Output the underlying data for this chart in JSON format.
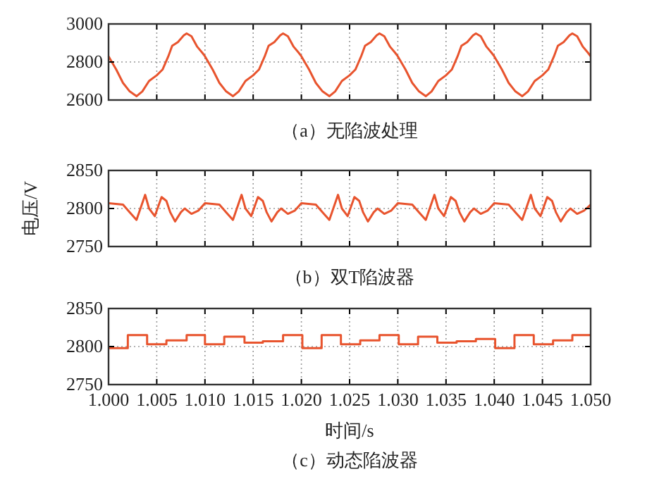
{
  "chart_data": [
    {
      "type": "line",
      "title": "（a）无陷波处理",
      "xlim": [
        1.0,
        1.05
      ],
      "ylim": [
        2600,
        3000
      ],
      "yticks": [
        2600,
        2800,
        3000
      ],
      "xticks": [
        {
          "value": 1.0,
          "label": null
        },
        {
          "value": 1.005,
          "label": null
        },
        {
          "value": 1.01,
          "label": null
        },
        {
          "value": 1.015,
          "label": null
        },
        {
          "value": 1.02,
          "label": null
        },
        {
          "value": 1.025,
          "label": null
        },
        {
          "value": 1.03,
          "label": null
        },
        {
          "value": 1.035,
          "label": null
        },
        {
          "value": 1.04,
          "label": null
        },
        {
          "value": 1.045,
          "label": null
        },
        {
          "value": 1.05,
          "label": null
        }
      ],
      "tick_labels": "y",
      "grid": true,
      "series": [
        {
          "color": "#e8542e",
          "x": [
            1.0,
            1.0008,
            1.0015,
            1.0022,
            1.0029,
            1.0035,
            1.0042,
            1.005,
            1.0056,
            1.0062,
            1.0066,
            1.0072,
            1.0078,
            1.0081,
            1.0086,
            1.0092,
            1.0097,
            1.01,
            1.0108,
            1.0115,
            1.0122,
            1.0129,
            1.0135,
            1.0142,
            1.015,
            1.0156,
            1.0162,
            1.0166,
            1.0172,
            1.0178,
            1.0181,
            1.0186,
            1.0192,
            1.0197,
            1.02,
            1.0208,
            1.0215,
            1.0222,
            1.0229,
            1.0235,
            1.0242,
            1.025,
            1.0256,
            1.0262,
            1.0266,
            1.0272,
            1.0278,
            1.0281,
            1.0286,
            1.0292,
            1.0297,
            1.03,
            1.0308,
            1.0315,
            1.0322,
            1.0329,
            1.0335,
            1.0342,
            1.035,
            1.0356,
            1.0362,
            1.0366,
            1.0372,
            1.0378,
            1.0381,
            1.0386,
            1.0392,
            1.0397,
            1.04,
            1.0408,
            1.0415,
            1.0422,
            1.0429,
            1.0435,
            1.0442,
            1.045,
            1.0456,
            1.0462,
            1.0466,
            1.0472,
            1.0478,
            1.0481,
            1.0486,
            1.0492,
            1.0497,
            1.05
          ],
          "values": [
            2830,
            2760,
            2690,
            2645,
            2620,
            2645,
            2700,
            2730,
            2760,
            2830,
            2885,
            2905,
            2940,
            2950,
            2935,
            2880,
            2850,
            2830,
            2760,
            2690,
            2645,
            2620,
            2645,
            2700,
            2730,
            2760,
            2830,
            2885,
            2905,
            2940,
            2950,
            2935,
            2880,
            2850,
            2830,
            2760,
            2690,
            2645,
            2620,
            2645,
            2700,
            2730,
            2760,
            2830,
            2885,
            2905,
            2940,
            2950,
            2935,
            2880,
            2850,
            2830,
            2760,
            2690,
            2645,
            2620,
            2645,
            2700,
            2730,
            2760,
            2830,
            2885,
            2905,
            2940,
            2950,
            2935,
            2880,
            2850,
            2830,
            2760,
            2690,
            2645,
            2620,
            2645,
            2700,
            2730,
            2760,
            2830,
            2885,
            2905,
            2940,
            2950,
            2935,
            2880,
            2850,
            2830
          ]
        }
      ]
    },
    {
      "type": "line",
      "title": "（b）双T陷波器",
      "ylabel": "电压/V",
      "xlim": [
        1.0,
        1.05
      ],
      "ylim": [
        2750,
        2850
      ],
      "yticks": [
        2750,
        2800,
        2850
      ],
      "xticks": [
        {
          "value": 1.0,
          "label": null
        },
        {
          "value": 1.005,
          "label": null
        },
        {
          "value": 1.01,
          "label": null
        },
        {
          "value": 1.015,
          "label": null
        },
        {
          "value": 1.02,
          "label": null
        },
        {
          "value": 1.025,
          "label": null
        },
        {
          "value": 1.03,
          "label": null
        },
        {
          "value": 1.035,
          "label": null
        },
        {
          "value": 1.04,
          "label": null
        },
        {
          "value": 1.045,
          "label": null
        },
        {
          "value": 1.05,
          "label": null
        }
      ],
      "tick_labels": "y",
      "grid": true,
      "series": [
        {
          "color": "#e8542e",
          "x": [
            1.0,
            1.0015,
            1.0022,
            1.0029,
            1.0038,
            1.0042,
            1.0048,
            1.0055,
            1.006,
            1.0064,
            1.0069,
            1.0075,
            1.0079,
            1.0086,
            1.0093,
            1.01,
            1.0115,
            1.0122,
            1.0129,
            1.0138,
            1.0142,
            1.0148,
            1.0155,
            1.016,
            1.0164,
            1.0169,
            1.0175,
            1.0179,
            1.0186,
            1.0193,
            1.02,
            1.0215,
            1.0222,
            1.0229,
            1.0238,
            1.0242,
            1.0248,
            1.0255,
            1.026,
            1.0264,
            1.0269,
            1.0275,
            1.0279,
            1.0286,
            1.0293,
            1.03,
            1.0315,
            1.0322,
            1.0329,
            1.0338,
            1.0342,
            1.0348,
            1.0355,
            1.036,
            1.0364,
            1.0369,
            1.0375,
            1.0379,
            1.0386,
            1.0393,
            1.04,
            1.0415,
            1.0422,
            1.0429,
            1.0438,
            1.0442,
            1.0448,
            1.0455,
            1.046,
            1.0464,
            1.0469,
            1.0475,
            1.0479,
            1.0486,
            1.0493,
            1.05
          ],
          "values": [
            2807,
            2805,
            2795,
            2785,
            2818,
            2800,
            2790,
            2815,
            2810,
            2795,
            2783,
            2795,
            2800,
            2793,
            2797,
            2807,
            2805,
            2795,
            2785,
            2818,
            2800,
            2790,
            2815,
            2810,
            2795,
            2783,
            2795,
            2800,
            2793,
            2797,
            2807,
            2805,
            2795,
            2785,
            2818,
            2800,
            2790,
            2815,
            2810,
            2795,
            2783,
            2795,
            2800,
            2793,
            2797,
            2807,
            2805,
            2795,
            2785,
            2818,
            2800,
            2790,
            2815,
            2810,
            2795,
            2783,
            2795,
            2800,
            2793,
            2797,
            2807,
            2805,
            2795,
            2785,
            2818,
            2800,
            2790,
            2815,
            2810,
            2795,
            2783,
            2795,
            2800,
            2793,
            2797,
            2805
          ]
        }
      ]
    },
    {
      "type": "step",
      "title": "（c）动态陷波器",
      "xlabel": "时间/s",
      "xlim": [
        1.0,
        1.05
      ],
      "ylim": [
        2750,
        2850
      ],
      "yticks": [
        2750,
        2800,
        2850
      ],
      "xticks": [
        {
          "value": 1.0,
          "label": "1.000"
        },
        {
          "value": 1.005,
          "label": "1.005"
        },
        {
          "value": 1.01,
          "label": "1.010"
        },
        {
          "value": 1.015,
          "label": "1.015"
        },
        {
          "value": 1.02,
          "label": "1.020"
        },
        {
          "value": 1.025,
          "label": "1.025"
        },
        {
          "value": 1.03,
          "label": "1.030"
        },
        {
          "value": 1.035,
          "label": "1.035"
        },
        {
          "value": 1.04,
          "label": "1.040"
        },
        {
          "value": 1.045,
          "label": "1.045"
        },
        {
          "value": 1.05,
          "label": "1.050"
        }
      ],
      "grid": true,
      "series": [
        {
          "color": "#e8542e",
          "x": [
            1.0,
            1.002,
            1.004,
            1.006,
            1.0081,
            1.01,
            1.012,
            1.0141,
            1.016,
            1.0181,
            1.0201,
            1.0221,
            1.0241,
            1.0261,
            1.0281,
            1.0301,
            1.0321,
            1.0341,
            1.0361,
            1.0381,
            1.0401,
            1.0421,
            1.0441,
            1.0461,
            1.0481,
            1.05
          ],
          "values": [
            2798,
            2815,
            2803,
            2808,
            2815,
            2803,
            2813,
            2805,
            2807,
            2815,
            2798,
            2815,
            2803,
            2808,
            2815,
            2803,
            2813,
            2805,
            2807,
            2810,
            2798,
            2815,
            2803,
            2808,
            2815,
            2815
          ]
        }
      ]
    }
  ]
}
